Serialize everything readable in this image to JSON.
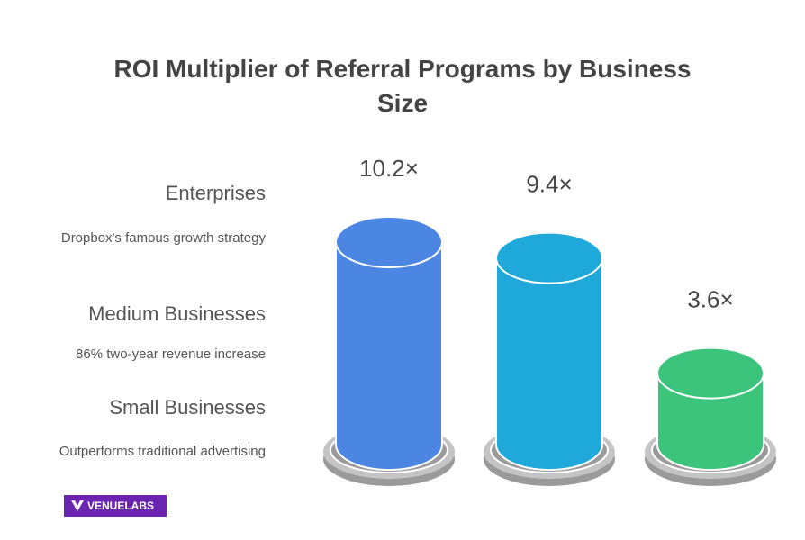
{
  "chart_data": {
    "type": "cylinder",
    "title": "ROI Multiplier of Referral Programs by Business Size",
    "categories": [
      "Enterprises",
      "Medium Businesses",
      "Small Businesses"
    ],
    "descriptions": [
      "Dropbox's famous growth strategy",
      "86% two-year revenue increase",
      "Outperforms traditional advertising"
    ],
    "values": [
      10.2,
      9.4,
      3.6
    ],
    "value_labels": [
      "10.2×",
      "9.4×",
      "3.6×"
    ],
    "colors": [
      "#4a86e2",
      "#1fa9db",
      "#3cc47c"
    ],
    "brand": "VENUELABS"
  }
}
